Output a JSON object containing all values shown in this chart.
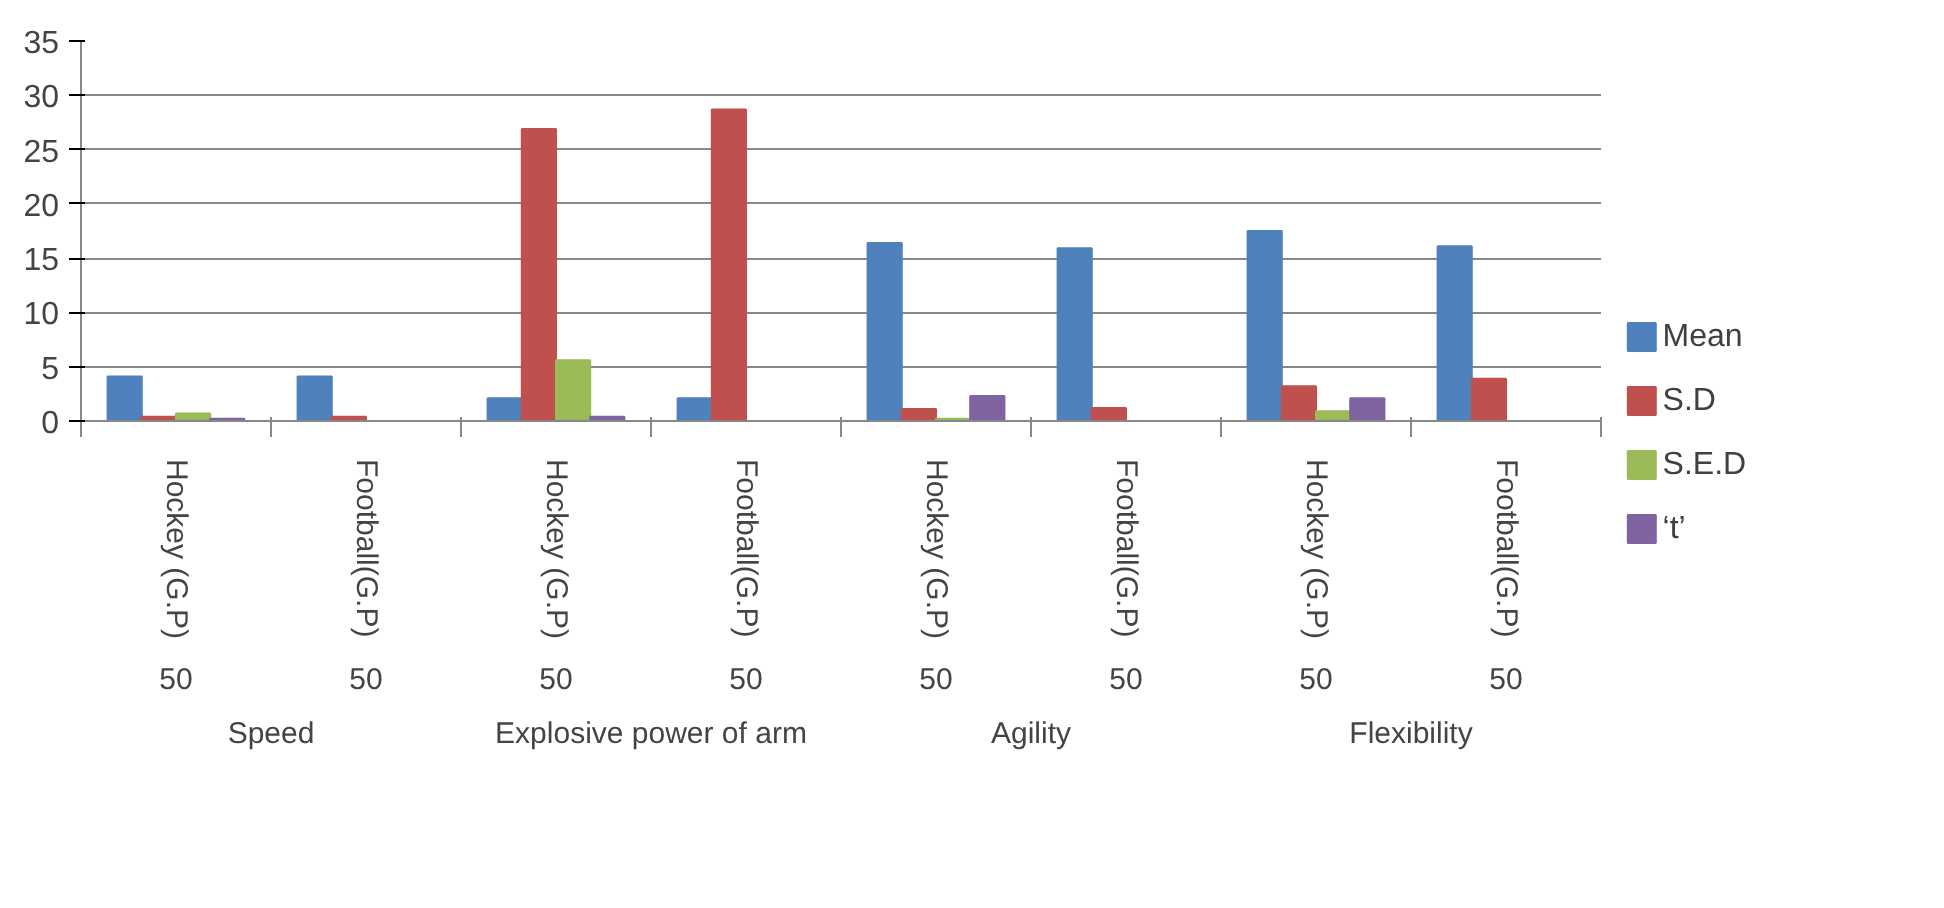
{
  "chart_data": {
    "type": "bar",
    "categories": [
      "Hockey (G.P)",
      "Football(G.P)",
      "Hockey (G.P)",
      "Football(G.P)",
      "Hockey (G.P)",
      "Football(G.P)",
      "Hockey (G.P)",
      "Football(G.P)"
    ],
    "series": [
      {
        "name": "Mean",
        "color": "#4f81bd",
        "values": [
          4.1,
          4.1,
          2.1,
          2.1,
          16.4,
          15.9,
          17.5,
          16.1
        ]
      },
      {
        "name": "S.D",
        "color": "#c0504d",
        "values": [
          0.4,
          0.4,
          26.9,
          28.7,
          1.1,
          1.2,
          3.2,
          3.9
        ]
      },
      {
        "name": "S.E.D",
        "color": "#9bbb59",
        "values": [
          0.7,
          null,
          5.6,
          null,
          0.2,
          null,
          0.9,
          null
        ]
      },
      {
        "name": "‘t’",
        "color": "#8064a2",
        "values": [
          0.2,
          null,
          0.4,
          null,
          2.3,
          null,
          2.1,
          null
        ]
      }
    ],
    "annotations": [
      "50",
      "50",
      "50",
      "50",
      "50",
      "50",
      "50",
      "50",
      "Speed",
      "Explosive power of arm",
      "Agility",
      "Flexibility"
    ],
    "ylim": [
      0,
      35
    ],
    "yticks": [
      0,
      5,
      10,
      15,
      20,
      25,
      30,
      35
    ],
    "grid": "y",
    "legend": "right"
  }
}
